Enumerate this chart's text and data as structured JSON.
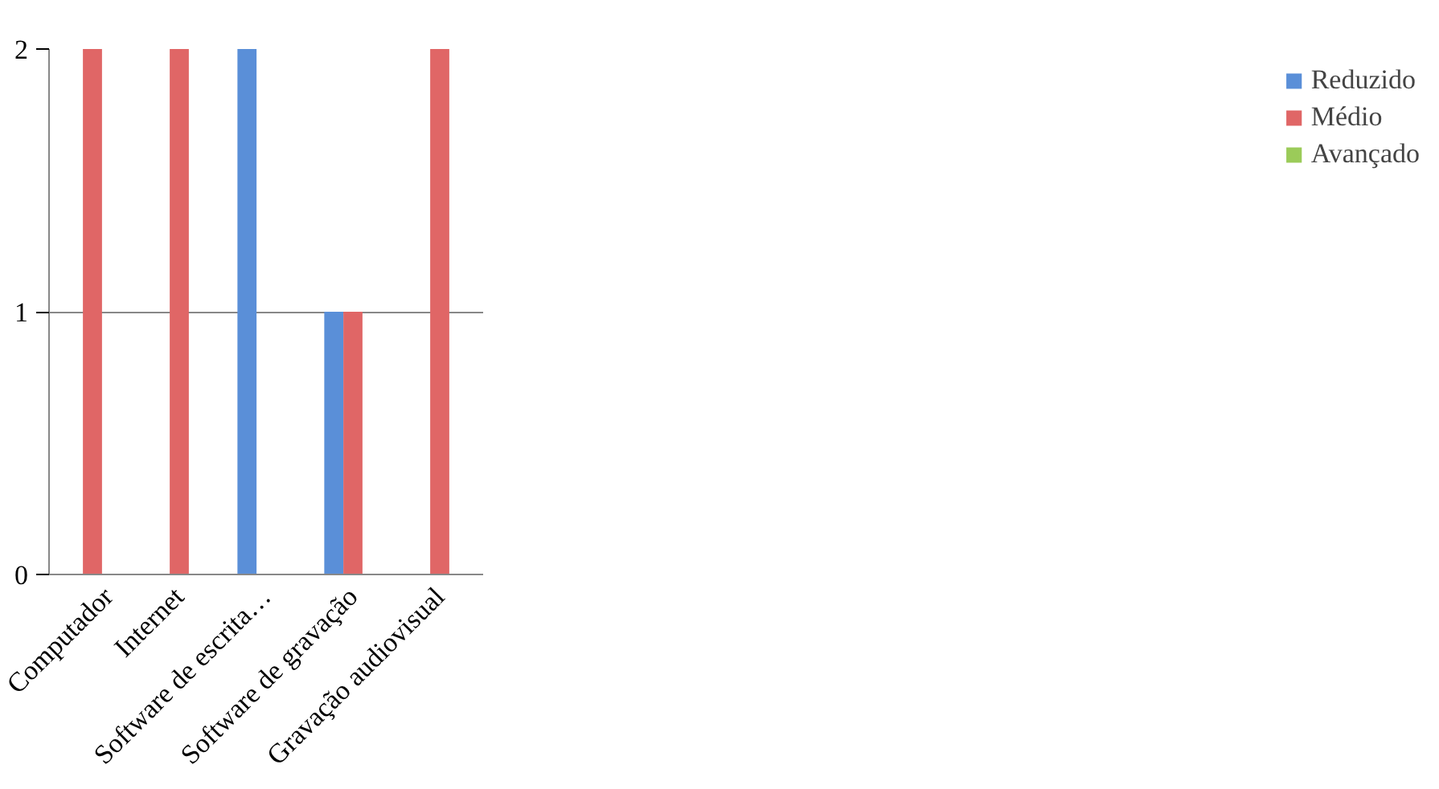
{
  "chart_data": {
    "type": "bar",
    "categories": [
      "Computador",
      "Internet",
      "Software de escrita…",
      "Software de gravação",
      "Gravação audiovisual"
    ],
    "series": [
      {
        "name": "Reduzido",
        "color": "#5a8fd8",
        "values": [
          0,
          0,
          2,
          1,
          0
        ]
      },
      {
        "name": "Médio",
        "color": "#e06666",
        "values": [
          2,
          2,
          0,
          1,
          2
        ]
      },
      {
        "name": "Avançado",
        "color": "#9bcb59",
        "values": [
          0,
          0,
          0,
          0,
          0
        ]
      }
    ],
    "ylim": [
      0,
      2
    ],
    "yticks": [
      0,
      1,
      2
    ],
    "grid": "y",
    "legend": "right"
  }
}
